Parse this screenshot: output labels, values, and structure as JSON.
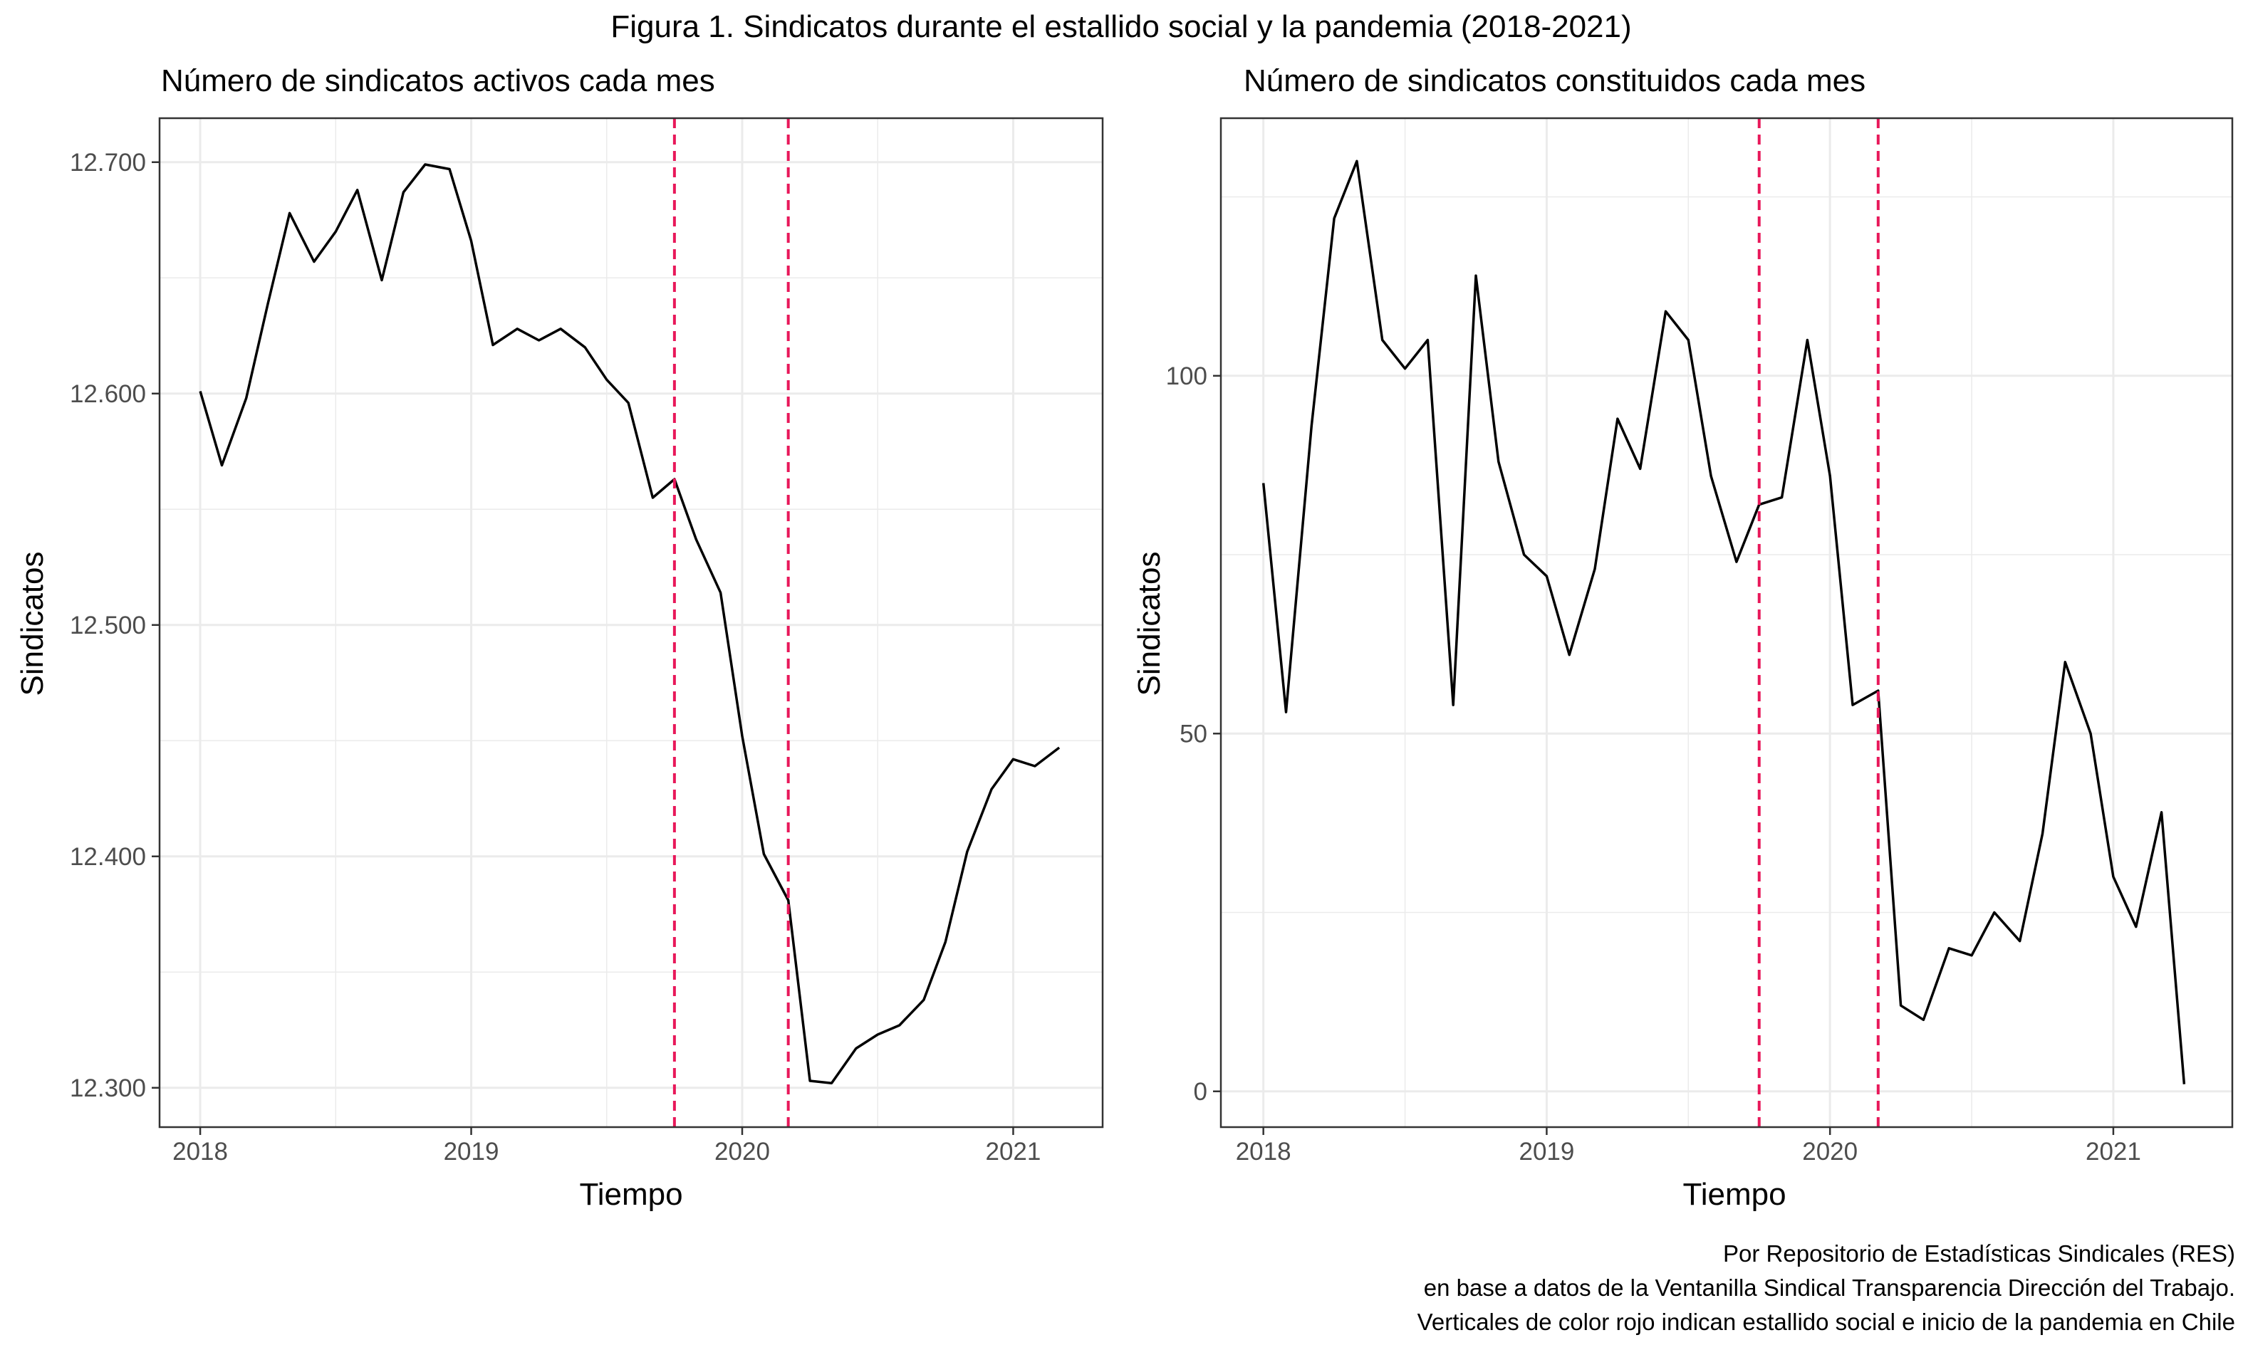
{
  "title": "Figura 1. Sindicatos durante el estallido social y la pandemia (2018-2021)",
  "caption": [
    "Por Repositorio de Estadísticas Sindicales (RES)",
    "en base a datos de la Ventanilla Sindical Transparencia Dirección del Trabajo.",
    "Verticales de color rojo indican estallido social e inicio de la pandemia en Chile"
  ],
  "colors": {
    "line": "#000000",
    "vline": "#e8185a",
    "grid": "#ebebeb",
    "border": "#333333"
  },
  "chart_data": [
    {
      "type": "line",
      "title": "Número de sindicatos activos cada mes",
      "xlabel": "Tiempo",
      "ylabel": "Sindicatos",
      "xlim": [
        2017.85,
        2021.33
      ],
      "ylim": [
        12283,
        12719
      ],
      "xticks": [
        2018,
        2019,
        2020,
        2021
      ],
      "xtick_labels": [
        "2018",
        "2019",
        "2020",
        "2021"
      ],
      "yticks": [
        12300,
        12400,
        12500,
        12600,
        12700
      ],
      "ytick_labels": [
        "12.300",
        "12.400",
        "12.500",
        "12.600",
        "12.700"
      ],
      "grid": true,
      "vlines": [
        2019.75,
        2020.17
      ],
      "x": [
        2018.0,
        2018.08,
        2018.17,
        2018.25,
        2018.33,
        2018.42,
        2018.5,
        2018.58,
        2018.67,
        2018.75,
        2018.83,
        2018.92,
        2019.0,
        2019.08,
        2019.17,
        2019.25,
        2019.33,
        2019.42,
        2019.5,
        2019.58,
        2019.67,
        2019.75,
        2019.83,
        2019.92,
        2020.0,
        2020.08,
        2020.17,
        2020.25,
        2020.33,
        2020.42,
        2020.5,
        2020.58,
        2020.67,
        2020.75,
        2020.83,
        2020.92,
        2021.0,
        2021.08,
        2021.17
      ],
      "y": [
        12601,
        12569,
        12598,
        12639,
        12678,
        12657,
        12670,
        12688,
        12649,
        12687,
        12699,
        12697,
        12666,
        12621,
        12628,
        12623,
        12628,
        12620,
        12606,
        12596,
        12555,
        12563,
        12537,
        12514,
        12452,
        12401,
        12381,
        12303,
        12302,
        12317,
        12323,
        12327,
        12338,
        12363,
        12402,
        12429,
        12442,
        12439,
        12447
      ]
    },
    {
      "type": "line",
      "title": "Número de sindicatos constituidos cada mes",
      "xlabel": "Tiempo",
      "ylabel": "Sindicatos",
      "xlim": [
        2017.85,
        2021.42
      ],
      "ylim": [
        -5,
        136
      ],
      "xticks": [
        2018,
        2019,
        2020,
        2021
      ],
      "xtick_labels": [
        "2018",
        "2019",
        "2020",
        "2021"
      ],
      "yticks": [
        0,
        50,
        100
      ],
      "ytick_labels": [
        "0",
        "50",
        "100"
      ],
      "grid": true,
      "vlines": [
        2019.75,
        2020.17
      ],
      "x": [
        2018.0,
        2018.08,
        2018.17,
        2018.25,
        2018.33,
        2018.42,
        2018.5,
        2018.58,
        2018.67,
        2018.75,
        2018.83,
        2018.92,
        2019.0,
        2019.08,
        2019.17,
        2019.25,
        2019.33,
        2019.42,
        2019.5,
        2019.58,
        2019.67,
        2019.75,
        2019.83,
        2019.92,
        2020.0,
        2020.08,
        2020.17,
        2020.25,
        2020.33,
        2020.42,
        2020.5,
        2020.58,
        2020.67,
        2020.75,
        2020.83,
        2020.92,
        2021.0,
        2021.08,
        2021.17,
        2021.25
      ],
      "y": [
        85,
        53,
        93,
        122,
        130,
        105,
        101,
        105,
        54,
        114,
        88,
        75,
        72,
        61,
        73,
        94,
        87,
        109,
        105,
        86,
        74,
        82,
        83,
        105,
        86,
        54,
        56,
        12,
        10,
        20,
        19,
        25,
        21,
        36,
        60,
        50,
        30,
        23,
        39,
        1
      ]
    }
  ]
}
